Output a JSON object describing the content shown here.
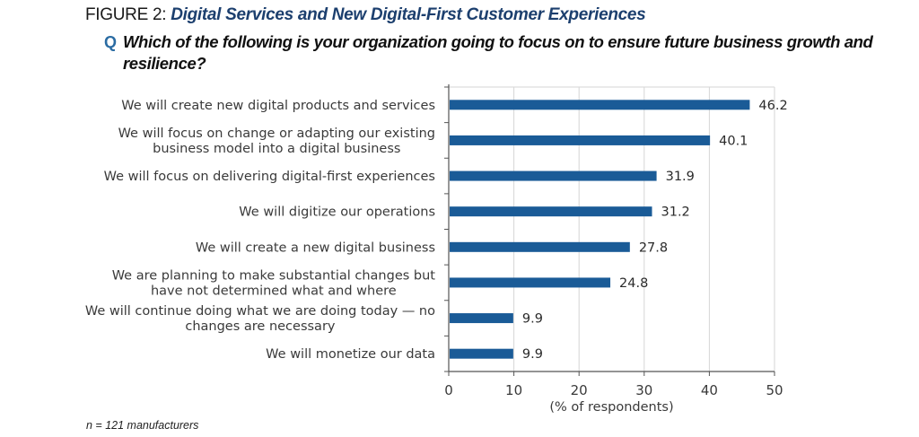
{
  "figure": {
    "prefix": "FIGURE 2: ",
    "title": "Digital Services and New Digital-First Customer Experiences"
  },
  "question": {
    "marker": "Q",
    "text": "Which of the following is your organization going to focus on to ensure future business growth and resilience?"
  },
  "note": "n = 121 manufacturers",
  "colors": {
    "bar": "#1a5b97",
    "title_accent": "#1c3f6e",
    "question_marker": "#2b6ca3",
    "gridline": "#d6d6d6",
    "axis": "#555555"
  },
  "chart_data": {
    "type": "bar",
    "orientation": "horizontal",
    "title": "Digital Services and New Digital-First Customer Experiences",
    "categories": [
      [
        "We will create new digital products and services"
      ],
      [
        "We will focus on change or adapting our existing",
        "business model into a digital business"
      ],
      [
        "We will focus on delivering digital-first experiences"
      ],
      [
        "We will digitize our operations"
      ],
      [
        "We will create a new digital business"
      ],
      [
        "We are planning to make substantial changes but",
        "have not determined what and where"
      ],
      [
        "We will continue doing what we are doing today — no",
        "changes are necessary"
      ],
      [
        "We will monetize our data"
      ]
    ],
    "values": [
      46.2,
      40.1,
      31.9,
      31.2,
      27.8,
      24.8,
      9.9,
      9.9
    ],
    "value_labels": [
      "46.2",
      "40.1",
      "31.9",
      "31.2",
      "27.8",
      "24.8",
      "9.9",
      "9.9"
    ],
    "xlabel": "(% of respondents)",
    "ylabel": "",
    "xlim": [
      0,
      50
    ],
    "xticks": [
      0,
      10,
      20,
      30,
      40,
      50
    ],
    "xtick_labels": [
      "0",
      "10",
      "20",
      "30",
      "40",
      "50"
    ],
    "grid": "vertical",
    "legend": "none"
  }
}
